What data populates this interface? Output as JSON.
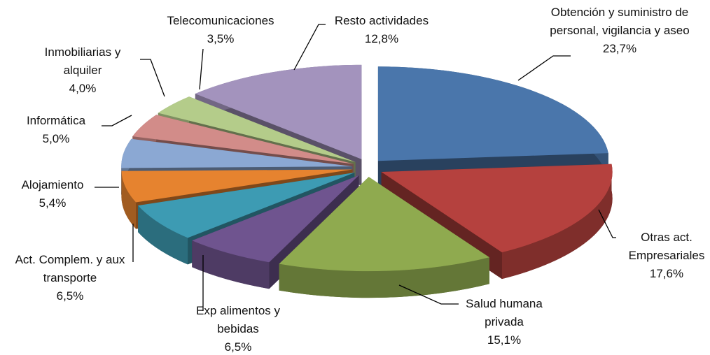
{
  "chart_data": {
    "type": "pie",
    "categories": [
      "Obtención y suministro de personal, vigilancia y aseo",
      "Otras act. Empresariales",
      "Salud humana privada",
      "Exp alimentos y bebidas",
      "Act. Complem. y aux transporte",
      "Alojamiento",
      "Informática",
      "Inmobiliarias y alquiler",
      "Telecomunicaciones",
      "Resto actividades"
    ],
    "values": [
      23.7,
      17.6,
      15.1,
      6.5,
      6.5,
      5.4,
      5.0,
      4.0,
      3.5,
      12.8
    ],
    "value_labels": [
      "23,7%",
      "17,6%",
      "15,1%",
      "6,5%",
      "6,5%",
      "5,4%",
      "5,0%",
      "4,0%",
      "3,5%",
      "12,8%"
    ],
    "colors": [
      "#4a76ab",
      "#b5413e",
      "#8faa4f",
      "#6f548f",
      "#3d9bb3",
      "#e6832f",
      "#8ba8d3",
      "#d28c89",
      "#b4cc8a",
      "#a393bd"
    ]
  }
}
